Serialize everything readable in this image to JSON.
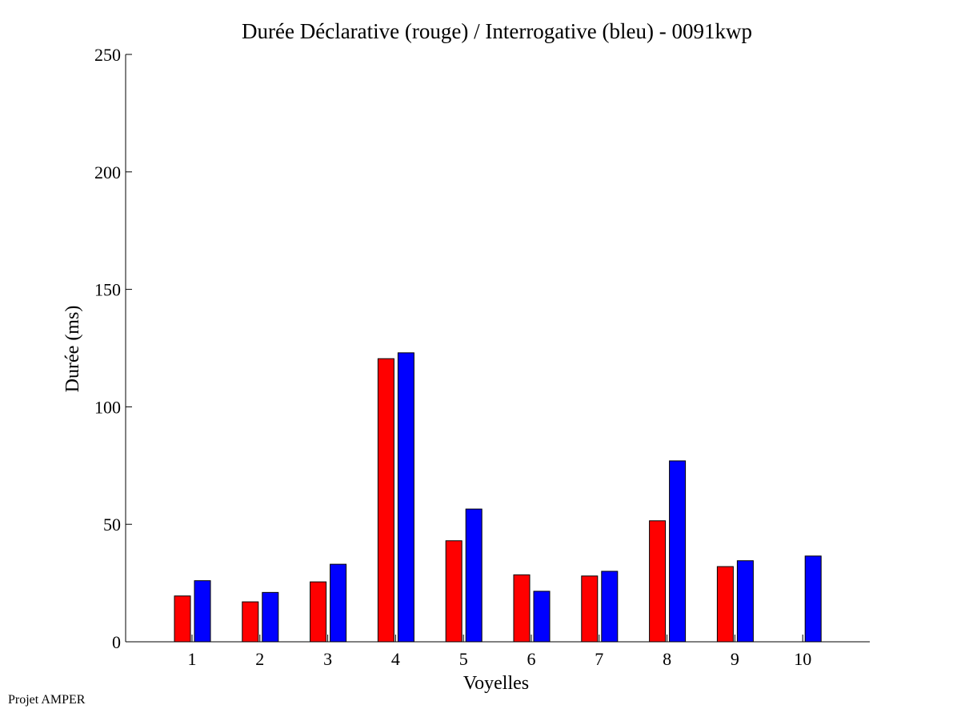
{
  "footer_text": "Projet AMPER",
  "chart_data": {
    "type": "bar",
    "title": "Durée Déclarative (rouge) / Interrogative (bleu) - 0091kwp",
    "xlabel": "Voyelles",
    "ylabel": "Durée (ms)",
    "categories": [
      "1",
      "2",
      "3",
      "4",
      "5",
      "6",
      "7",
      "8",
      "9",
      "10"
    ],
    "series": [
      {
        "color": "#ff0000",
        "values": [
          19.5,
          17,
          25.5,
          120.5,
          43,
          28.5,
          28,
          51.5,
          32,
          null
        ]
      },
      {
        "color": "#0000ff",
        "values": [
          26,
          21,
          33,
          123,
          56.5,
          21.5,
          30,
          77,
          34.5,
          36.5
        ]
      }
    ],
    "ylim": [
      0,
      250
    ],
    "yticks": [
      0,
      50,
      100,
      150,
      200,
      250
    ],
    "grid": false,
    "legend": "none"
  }
}
